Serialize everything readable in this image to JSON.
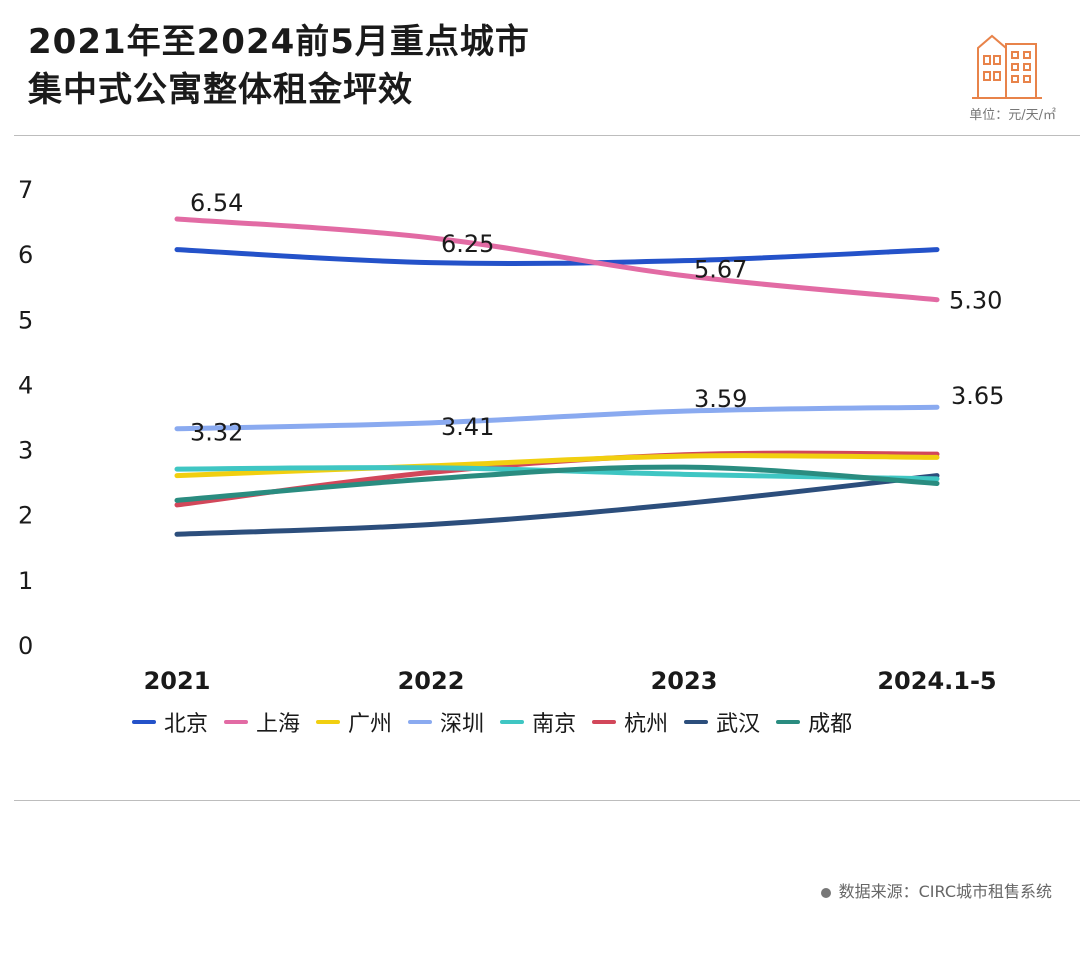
{
  "header": {
    "title_line1": "2021年至2024前5月重点城市",
    "title_line2": "集中式公寓整体租金坪效",
    "unit": "单位：元/天/㎡"
  },
  "footer": {
    "source": "数据来源：CIRC城市租售系统"
  },
  "colors": {
    "北京": "#2452c9",
    "上海": "#e26ba4",
    "广州": "#f1cf10",
    "深圳": "#8aaaf0",
    "南京": "#3fc6c3",
    "杭州": "#d2475a",
    "武汉": "#2c4e7c",
    "成都": "#2a8c80"
  },
  "chart_data": {
    "type": "line",
    "categories": [
      "2021",
      "2022",
      "2023",
      "2024.1-5"
    ],
    "ylim": [
      0,
      7
    ],
    "yticks": [
      "0",
      "1",
      "2",
      "3",
      "4",
      "5",
      "6",
      "7"
    ],
    "grid": false,
    "legend_position": "bottom",
    "series": [
      {
        "name": "北京",
        "values": [
          6.07,
          5.87,
          5.9,
          6.07
        ],
        "labels": []
      },
      {
        "name": "上海",
        "values": [
          6.54,
          6.25,
          5.67,
          5.3
        ],
        "labels": [
          "6.54",
          "6.25",
          "5.67",
          "5.30"
        ]
      },
      {
        "name": "广州",
        "values": [
          2.6,
          2.75,
          2.9,
          2.88
        ],
        "labels": []
      },
      {
        "name": "深圳",
        "values": [
          3.32,
          3.41,
          3.59,
          3.65
        ],
        "labels": [
          "3.32",
          "3.41",
          "3.59",
          "3.65"
        ]
      },
      {
        "name": "南京",
        "values": [
          2.7,
          2.72,
          2.62,
          2.55
        ],
        "labels": []
      },
      {
        "name": "杭州",
        "values": [
          2.15,
          2.65,
          2.92,
          2.93
        ],
        "labels": []
      },
      {
        "name": "武汉",
        "values": [
          1.7,
          1.85,
          2.17,
          2.6
        ],
        "labels": []
      },
      {
        "name": "成都",
        "values": [
          2.22,
          2.55,
          2.73,
          2.48
        ],
        "labels": []
      }
    ]
  }
}
